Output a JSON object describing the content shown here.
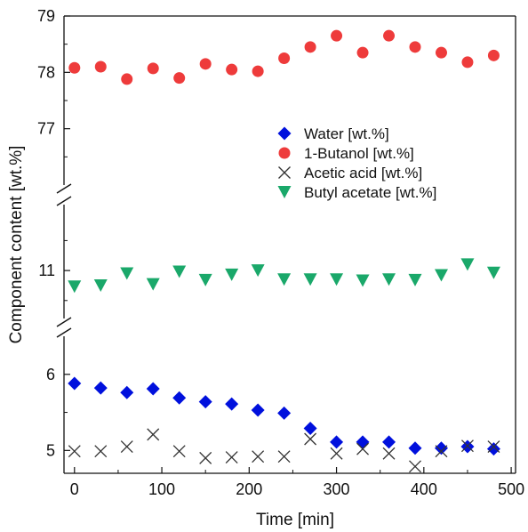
{
  "chart_data": {
    "type": "scatter",
    "xlabel": "Time [min]",
    "ylabel": "Component content [wt.%]",
    "x_ticks": [
      "0",
      "100",
      "200",
      "300",
      "400",
      "500"
    ],
    "xlim": [
      -12,
      505
    ],
    "y_segments": [
      {
        "name": "upper",
        "range": [
          76.0,
          79.0
        ],
        "tick_labels": [
          "77",
          "78",
          "79"
        ]
      },
      {
        "name": "middle",
        "range": [
          10.2,
          12.1
        ],
        "tick_labels": [
          "11"
        ]
      },
      {
        "name": "lower",
        "range": [
          4.7,
          6.5
        ],
        "tick_labels": [
          "5",
          "6"
        ]
      }
    ],
    "grid": false,
    "legend_position": "inside-upper-right",
    "series": [
      {
        "name": "Water [wt.%]",
        "marker": "diamond",
        "color": "#0010dd",
        "points": [
          [
            0,
            5.88
          ],
          [
            30,
            5.82
          ],
          [
            60,
            5.76
          ],
          [
            90,
            5.81
          ],
          [
            120,
            5.69
          ],
          [
            150,
            5.64
          ],
          [
            180,
            5.61
          ],
          [
            210,
            5.53
          ],
          [
            240,
            5.49
          ],
          [
            270,
            5.29
          ],
          [
            300,
            5.11
          ],
          [
            330,
            5.11
          ],
          [
            360,
            5.11
          ],
          [
            390,
            5.03
          ],
          [
            420,
            5.03
          ],
          [
            450,
            5.05
          ],
          [
            480,
            5.02
          ]
        ]
      },
      {
        "name": "1-Butanol [wt.%]",
        "marker": "circle",
        "color": "#ee3b3b",
        "points": [
          [
            0,
            78.08
          ],
          [
            30,
            78.1
          ],
          [
            60,
            77.88
          ],
          [
            90,
            78.07
          ],
          [
            120,
            77.9
          ],
          [
            150,
            78.15
          ],
          [
            180,
            78.05
          ],
          [
            210,
            78.02
          ],
          [
            240,
            78.25
          ],
          [
            270,
            78.45
          ],
          [
            300,
            78.65
          ],
          [
            330,
            78.35
          ],
          [
            360,
            78.65
          ],
          [
            390,
            78.45
          ],
          [
            420,
            78.35
          ],
          [
            450,
            78.18
          ],
          [
            480,
            78.3
          ]
        ]
      },
      {
        "name": "Acetic acid [wt.%]",
        "marker": "x",
        "color": "#333333",
        "points": [
          [
            0,
            4.99
          ],
          [
            30,
            4.99
          ],
          [
            60,
            5.05
          ],
          [
            90,
            5.21
          ],
          [
            120,
            4.99
          ],
          [
            150,
            4.9
          ],
          [
            180,
            4.91
          ],
          [
            210,
            4.92
          ],
          [
            240,
            4.92
          ],
          [
            270,
            5.15
          ],
          [
            300,
            4.96
          ],
          [
            330,
            5.02
          ],
          [
            360,
            4.96
          ],
          [
            390,
            4.79
          ],
          [
            420,
            4.99
          ],
          [
            450,
            5.06
          ],
          [
            480,
            5.05
          ]
        ]
      },
      {
        "name": "Butyl acetate [wt.%]",
        "marker": "triangle-down",
        "color": "#1aa86a",
        "points": [
          [
            0,
            10.73
          ],
          [
            30,
            10.75
          ],
          [
            60,
            10.95
          ],
          [
            90,
            10.77
          ],
          [
            120,
            10.98
          ],
          [
            150,
            10.84
          ],
          [
            180,
            10.93
          ],
          [
            210,
            11.0
          ],
          [
            240,
            10.85
          ],
          [
            270,
            10.85
          ],
          [
            300,
            10.85
          ],
          [
            330,
            10.83
          ],
          [
            360,
            10.85
          ],
          [
            390,
            10.84
          ],
          [
            420,
            10.92
          ],
          [
            450,
            11.1
          ],
          [
            480,
            10.96
          ]
        ]
      }
    ]
  }
}
